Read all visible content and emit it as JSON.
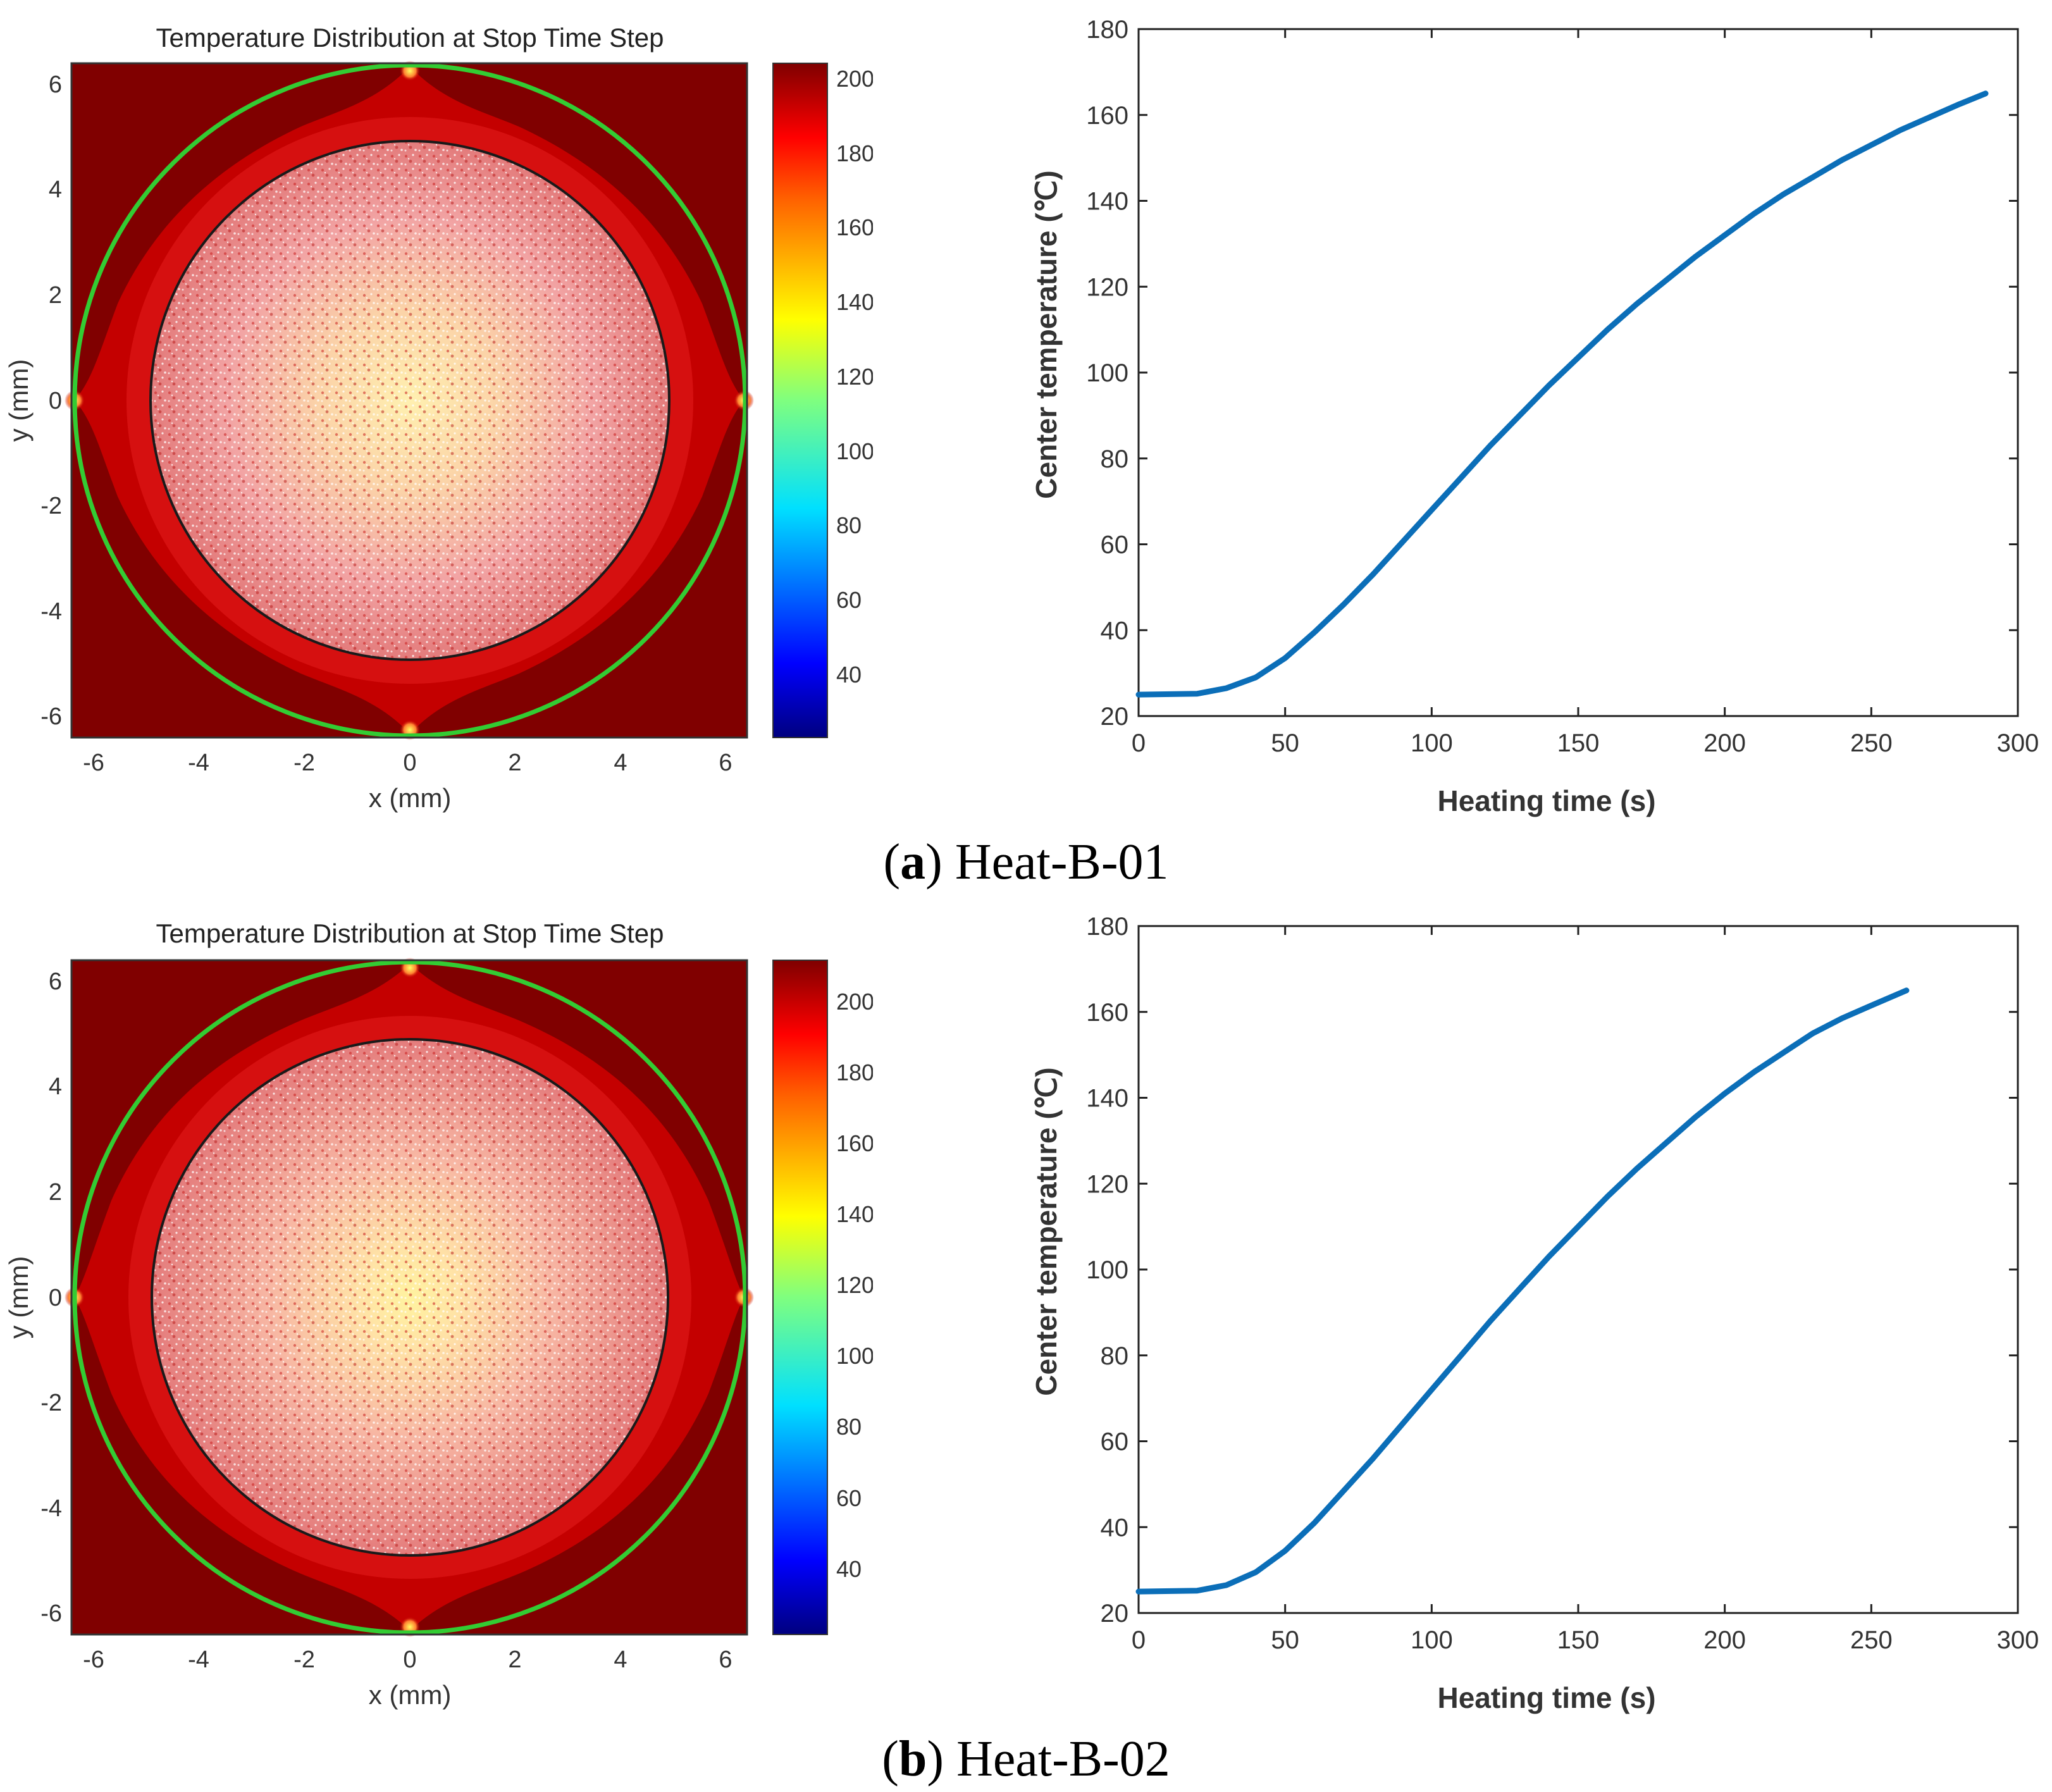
{
  "panels": [
    {
      "caption": {
        "letter": "a",
        "name": "Heat-B-01"
      },
      "map": {
        "title": "Temperature Distribution at Stop Time Step",
        "xlabel": "x (mm)",
        "ylabel": "y (mm)",
        "xticks": [
          "-6",
          "-4",
          "-2",
          "0",
          "2",
          "4",
          "6"
        ],
        "yticks": [
          "6",
          "4",
          "2",
          "0",
          "-2",
          "-4",
          "-6"
        ],
        "colorbar_ticks": [
          "200",
          "180",
          "160",
          "140",
          "120",
          "100",
          "80",
          "60",
          "40"
        ],
        "colorbar_range": [
          25,
          207
        ],
        "boundary_color": "#33cc33"
      },
      "chart_data": {
        "type": "line",
        "xlabel": "Heating time (s)",
        "ylabel": "Center temperature (℃)",
        "xlim": [
          0,
          300
        ],
        "ylim": [
          20,
          180
        ],
        "xticks": [
          0,
          50,
          100,
          150,
          200,
          250,
          300
        ],
        "yticks": [
          20,
          40,
          60,
          80,
          100,
          120,
          140,
          160,
          180
        ],
        "series": [
          {
            "color": "#0b6eb8",
            "x": [
              0,
              20,
              30,
              40,
              50,
              60,
              70,
              80,
              90,
              100,
              110,
              120,
              130,
              140,
              150,
              160,
              170,
              180,
              190,
              200,
              210,
              220,
              230,
              240,
              250,
              260,
              270,
              280,
              289
            ],
            "y": [
              25,
              25.2,
              26.5,
              29,
              33.5,
              39.5,
              46,
              53,
              60.5,
              68,
              75.5,
              83,
              90,
              97,
              103.5,
              110,
              116,
              121.5,
              127,
              132,
              137,
              141.5,
              145.5,
              149.5,
              153,
              156.5,
              159.5,
              162.5,
              165
            ]
          }
        ]
      }
    },
    {
      "caption": {
        "letter": "b",
        "name": "Heat-B-02"
      },
      "map": {
        "title": "Temperature Distribution at Stop Time Step",
        "xlabel": "x (mm)",
        "ylabel": "y (mm)",
        "xticks": [
          "-6",
          "-4",
          "-2",
          "0",
          "2",
          "4",
          "6"
        ],
        "yticks": [
          "6",
          "4",
          "2",
          "0",
          "-2",
          "-4",
          "-6"
        ],
        "colorbar_ticks": [
          "200",
          "180",
          "160",
          "140",
          "120",
          "100",
          "80",
          "60",
          "40"
        ],
        "colorbar_range": [
          25,
          215
        ],
        "boundary_color": "#33cc33"
      },
      "chart_data": {
        "type": "line",
        "xlabel": "Heating time (s)",
        "ylabel": "Center temperature (℃)",
        "xlim": [
          0,
          300
        ],
        "ylim": [
          20,
          180
        ],
        "xticks": [
          0,
          50,
          100,
          150,
          200,
          250,
          300
        ],
        "yticks": [
          20,
          40,
          60,
          80,
          100,
          120,
          140,
          160,
          180
        ],
        "series": [
          {
            "color": "#0b6eb8",
            "x": [
              0,
              20,
              30,
              40,
              50,
              60,
              70,
              80,
              90,
              100,
              110,
              120,
              130,
              140,
              150,
              160,
              170,
              180,
              190,
              200,
              210,
              220,
              230,
              240,
              250,
              262
            ],
            "y": [
              25,
              25.2,
              26.5,
              29.5,
              34.5,
              41,
              48.5,
              56,
              64,
              72,
              80,
              88,
              95.5,
              103,
              110,
              117,
              123.5,
              129.5,
              135.5,
              141,
              146,
              150.5,
              155,
              158.5,
              161.5,
              165
            ]
          }
        ]
      }
    }
  ]
}
